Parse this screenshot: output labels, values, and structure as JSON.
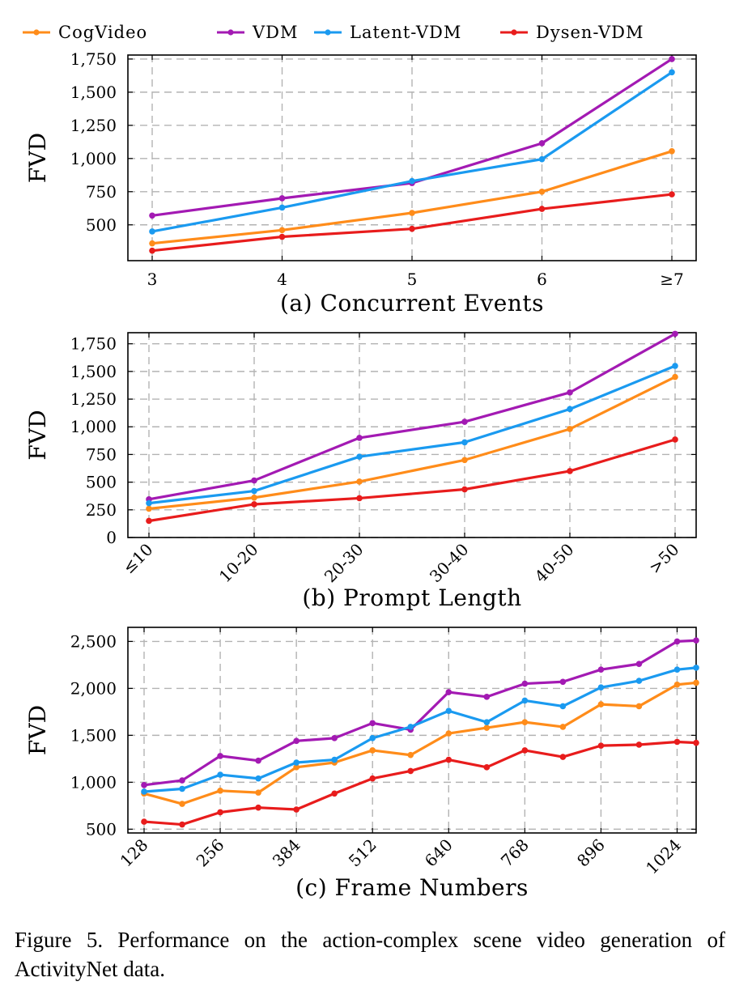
{
  "legend": [
    {
      "name": "CogVideo",
      "color": "#ff8c1a"
    },
    {
      "name": "VDM",
      "color": "#a31ab3"
    },
    {
      "name": "Latent-VDM",
      "color": "#1a9af0"
    },
    {
      "name": "Dysen-VDM",
      "color": "#e81c1c"
    }
  ],
  "caption": "Figure 5. Performance on the action-complex scene video generation of ActivityNet data.",
  "chart_data": [
    {
      "type": "line",
      "title": "(a) Concurrent Events",
      "ylabel": "FVD",
      "categories": [
        "3",
        "4",
        "5",
        "6",
        "≥7"
      ],
      "yticks": [
        500,
        750,
        1000,
        1250,
        1500,
        1750
      ],
      "ytick_labels": [
        "500",
        "750",
        "1,000",
        "1,250",
        "1,500",
        "1,750"
      ],
      "ylim": [
        230,
        1780
      ],
      "grid": true,
      "rotate_xticks": false,
      "series": [
        {
          "name": "CogVideo",
          "values": [
            360,
            460,
            590,
            750,
            1055
          ]
        },
        {
          "name": "VDM",
          "values": [
            570,
            700,
            815,
            1115,
            1750
          ]
        },
        {
          "name": "Latent-VDM",
          "values": [
            450,
            630,
            830,
            995,
            1650
          ]
        },
        {
          "name": "Dysen-VDM",
          "values": [
            305,
            410,
            470,
            620,
            730
          ]
        }
      ]
    },
    {
      "type": "line",
      "title": "(b) Prompt Length",
      "ylabel": "FVD",
      "categories": [
        "≤10",
        "10-20",
        "20-30",
        "30-40",
        "40-50",
        ">50"
      ],
      "yticks": [
        0,
        250,
        500,
        750,
        1000,
        1250,
        1500,
        1750
      ],
      "ytick_labels": [
        "0",
        "250",
        "500",
        "750",
        "1,000",
        "1,250",
        "1,500",
        "1,750"
      ],
      "ylim": [
        0,
        1850
      ],
      "grid": true,
      "rotate_xticks": true,
      "series": [
        {
          "name": "CogVideo",
          "values": [
            260,
            360,
            505,
            700,
            980,
            1450
          ]
        },
        {
          "name": "VDM",
          "values": [
            345,
            515,
            900,
            1045,
            1310,
            1840
          ]
        },
        {
          "name": "Latent-VDM",
          "values": [
            310,
            420,
            730,
            860,
            1160,
            1550
          ]
        },
        {
          "name": "Dysen-VDM",
          "values": [
            150,
            300,
            355,
            435,
            600,
            885
          ]
        }
      ]
    },
    {
      "type": "line",
      "title": "(c) Frame Numbers",
      "ylabel": "FVD",
      "x": [
        128,
        192,
        256,
        320,
        384,
        448,
        512,
        576,
        640,
        704,
        768,
        832,
        896,
        960,
        1024,
        1056
      ],
      "xticks": [
        128,
        256,
        384,
        512,
        640,
        768,
        896,
        1024
      ],
      "xlim": [
        128,
        1056
      ],
      "yticks": [
        500,
        1000,
        1500,
        2000,
        2500
      ],
      "ytick_labels": [
        "500",
        "1,000",
        "1,500",
        "2,000",
        "2,500"
      ],
      "ylim": [
        460,
        2650
      ],
      "grid": true,
      "rotate_xticks": true,
      "series": [
        {
          "name": "CogVideo",
          "values": [
            880,
            770,
            910,
            890,
            1160,
            1210,
            1340,
            1290,
            1520,
            1580,
            1640,
            1590,
            1830,
            1810,
            2040,
            2060
          ]
        },
        {
          "name": "VDM",
          "values": [
            970,
            1020,
            1280,
            1230,
            1440,
            1470,
            1630,
            1560,
            1960,
            1910,
            2050,
            2070,
            2200,
            2260,
            2500,
            2510
          ]
        },
        {
          "name": "Latent-VDM",
          "values": [
            900,
            930,
            1080,
            1040,
            1210,
            1240,
            1470,
            1590,
            1760,
            1640,
            1870,
            1810,
            2010,
            2080,
            2200,
            2220
          ]
        },
        {
          "name": "Dysen-VDM",
          "values": [
            580,
            550,
            680,
            730,
            710,
            880,
            1040,
            1120,
            1240,
            1160,
            1340,
            1270,
            1390,
            1400,
            1430,
            1420
          ]
        }
      ]
    }
  ]
}
